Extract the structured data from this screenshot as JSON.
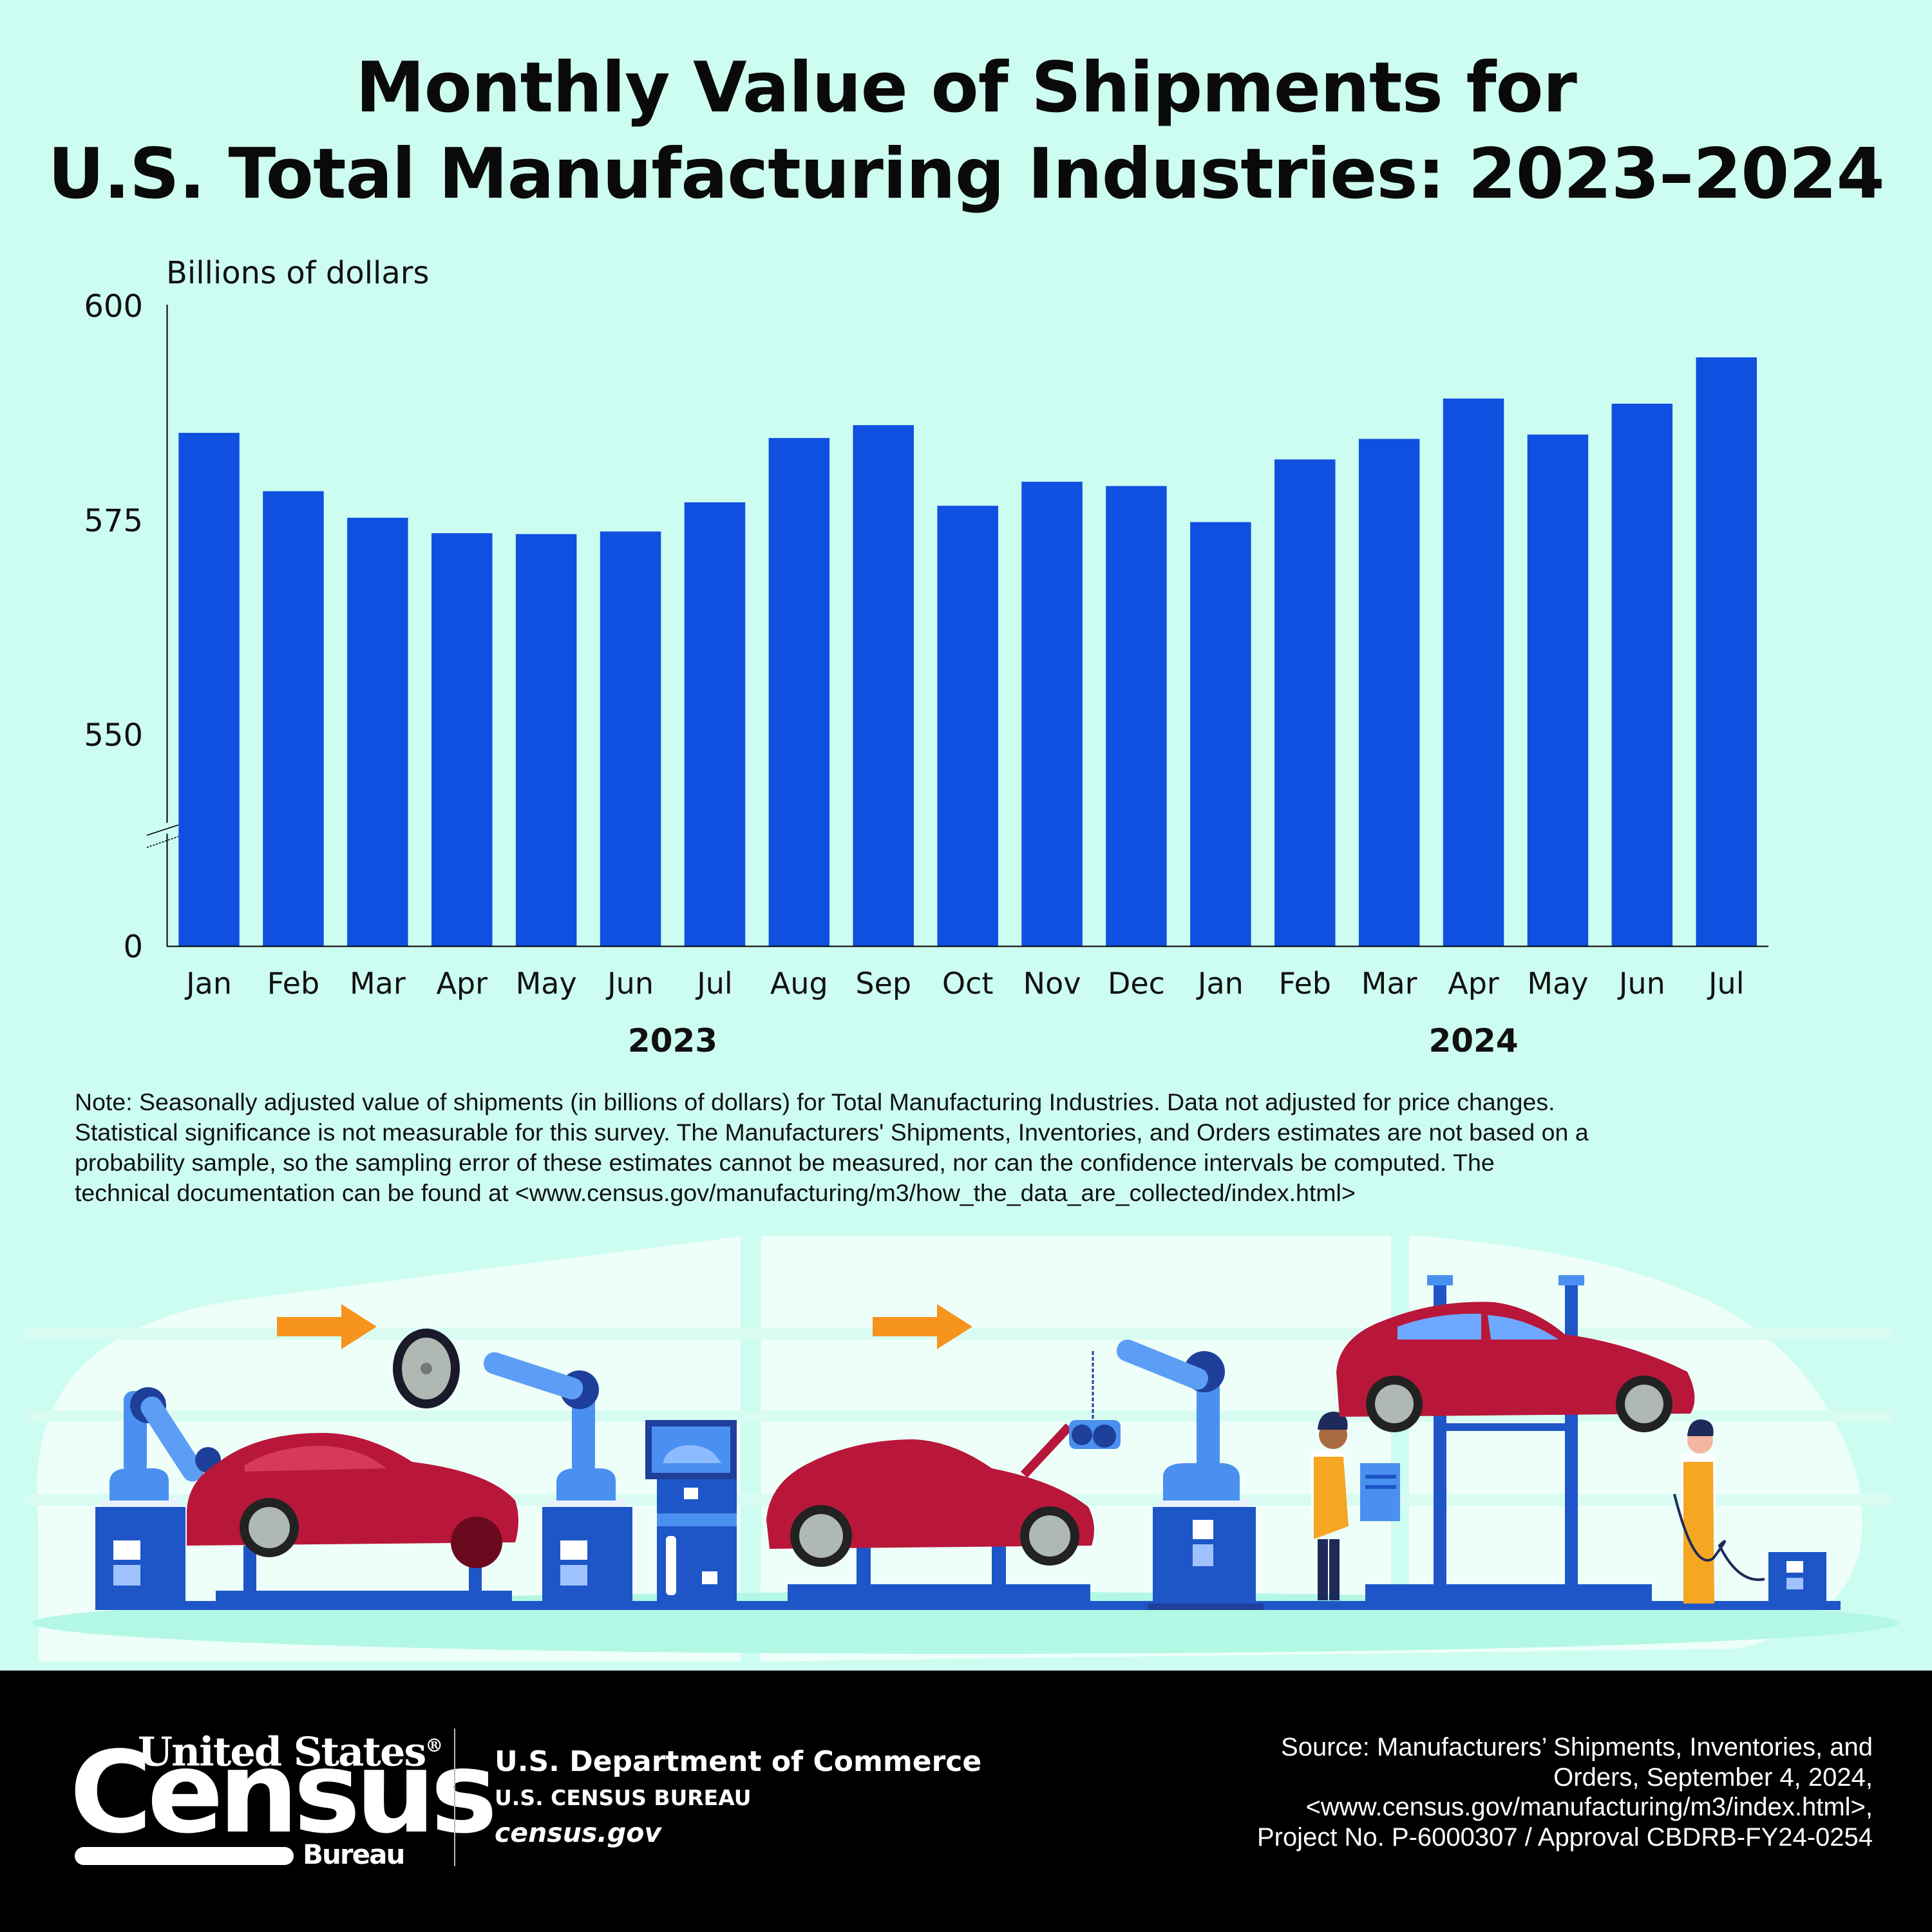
{
  "title": {
    "line1": "Monthly Value of Shipments for",
    "line2": "U.S. Total Manufacturing Industries: 2023–2024"
  },
  "chart_data": {
    "type": "bar",
    "title": "Monthly Value of Shipments for U.S. Total Manufacturing Industries: 2023–2024",
    "ylabel": "Billions of dollars",
    "xlabel": "",
    "y_axis_break": true,
    "y_ticks": [
      0,
      550,
      575,
      600
    ],
    "ylim": [
      545,
      600
    ],
    "grid": false,
    "categories": [
      "Jan",
      "Feb",
      "Mar",
      "Apr",
      "May",
      "Jun",
      "Jul",
      "Aug",
      "Sep",
      "Oct",
      "Nov",
      "Dec",
      "Jan",
      "Feb",
      "Mar",
      "Apr",
      "May",
      "Jun",
      "Jul"
    ],
    "year_groups": [
      {
        "label": "2023",
        "start_index": 0,
        "end_index": 11
      },
      {
        "label": "2024",
        "start_index": 12,
        "end_index": 18
      }
    ],
    "series": [
      {
        "name": "Value of shipments",
        "color": "#1050E0",
        "values": [
          585.2,
          578.4,
          575.3,
          573.5,
          573.4,
          573.7,
          577.1,
          584.6,
          586.1,
          576.7,
          579.5,
          579.0,
          574.8,
          582.1,
          584.5,
          589.2,
          585.0,
          588.6,
          594.0
        ]
      }
    ]
  },
  "note": {
    "lines": [
      "Note: Seasonally adjusted value of shipments (in billions of dollars) for Total Manufacturing Industries. Data not adjusted for price changes.",
      "Statistical significance is not measurable for this survey. The Manufacturers' Shipments, Inventories, and Orders estimates are not based on a",
      "probability sample, so the sampling error of these estimates cannot be measured, nor can the confidence intervals be computed. The",
      "technical documentation can be found at <www.census.gov/manufacturing/m3/how_the_data_are_collected/index.html>"
    ]
  },
  "illustration": {
    "description": "Car factory assembly line with robotic arms, red cars, workers and lift",
    "icons": [
      "robot-arm-icon",
      "car-icon",
      "arrow-right-icon",
      "wheel-icon",
      "monitor-icon",
      "worker-icon",
      "car-lift-icon",
      "control-panel-icon"
    ],
    "colors": {
      "car": "#B8173A",
      "machine": "#1E56C8",
      "machine_light": "#4A90F0",
      "arrow": "#F7941D",
      "apron": "#F5A623"
    }
  },
  "footer": {
    "logo": {
      "top": "United States",
      "registered": "®",
      "main": "Census",
      "sub": "Bureau"
    },
    "department": "U.S. Department of Commerce",
    "bureau": "U.S. CENSUS BUREAU",
    "website": "census.gov",
    "source_lines": [
      "Source: Manufacturers’ Shipments, Inventories, and",
      "Orders, September 4, 2024,",
      "<www.census.gov/manufacturing/m3/index.html>,",
      "Project No. P-6000307 / Approval CBDRB-FY24-0254"
    ]
  }
}
